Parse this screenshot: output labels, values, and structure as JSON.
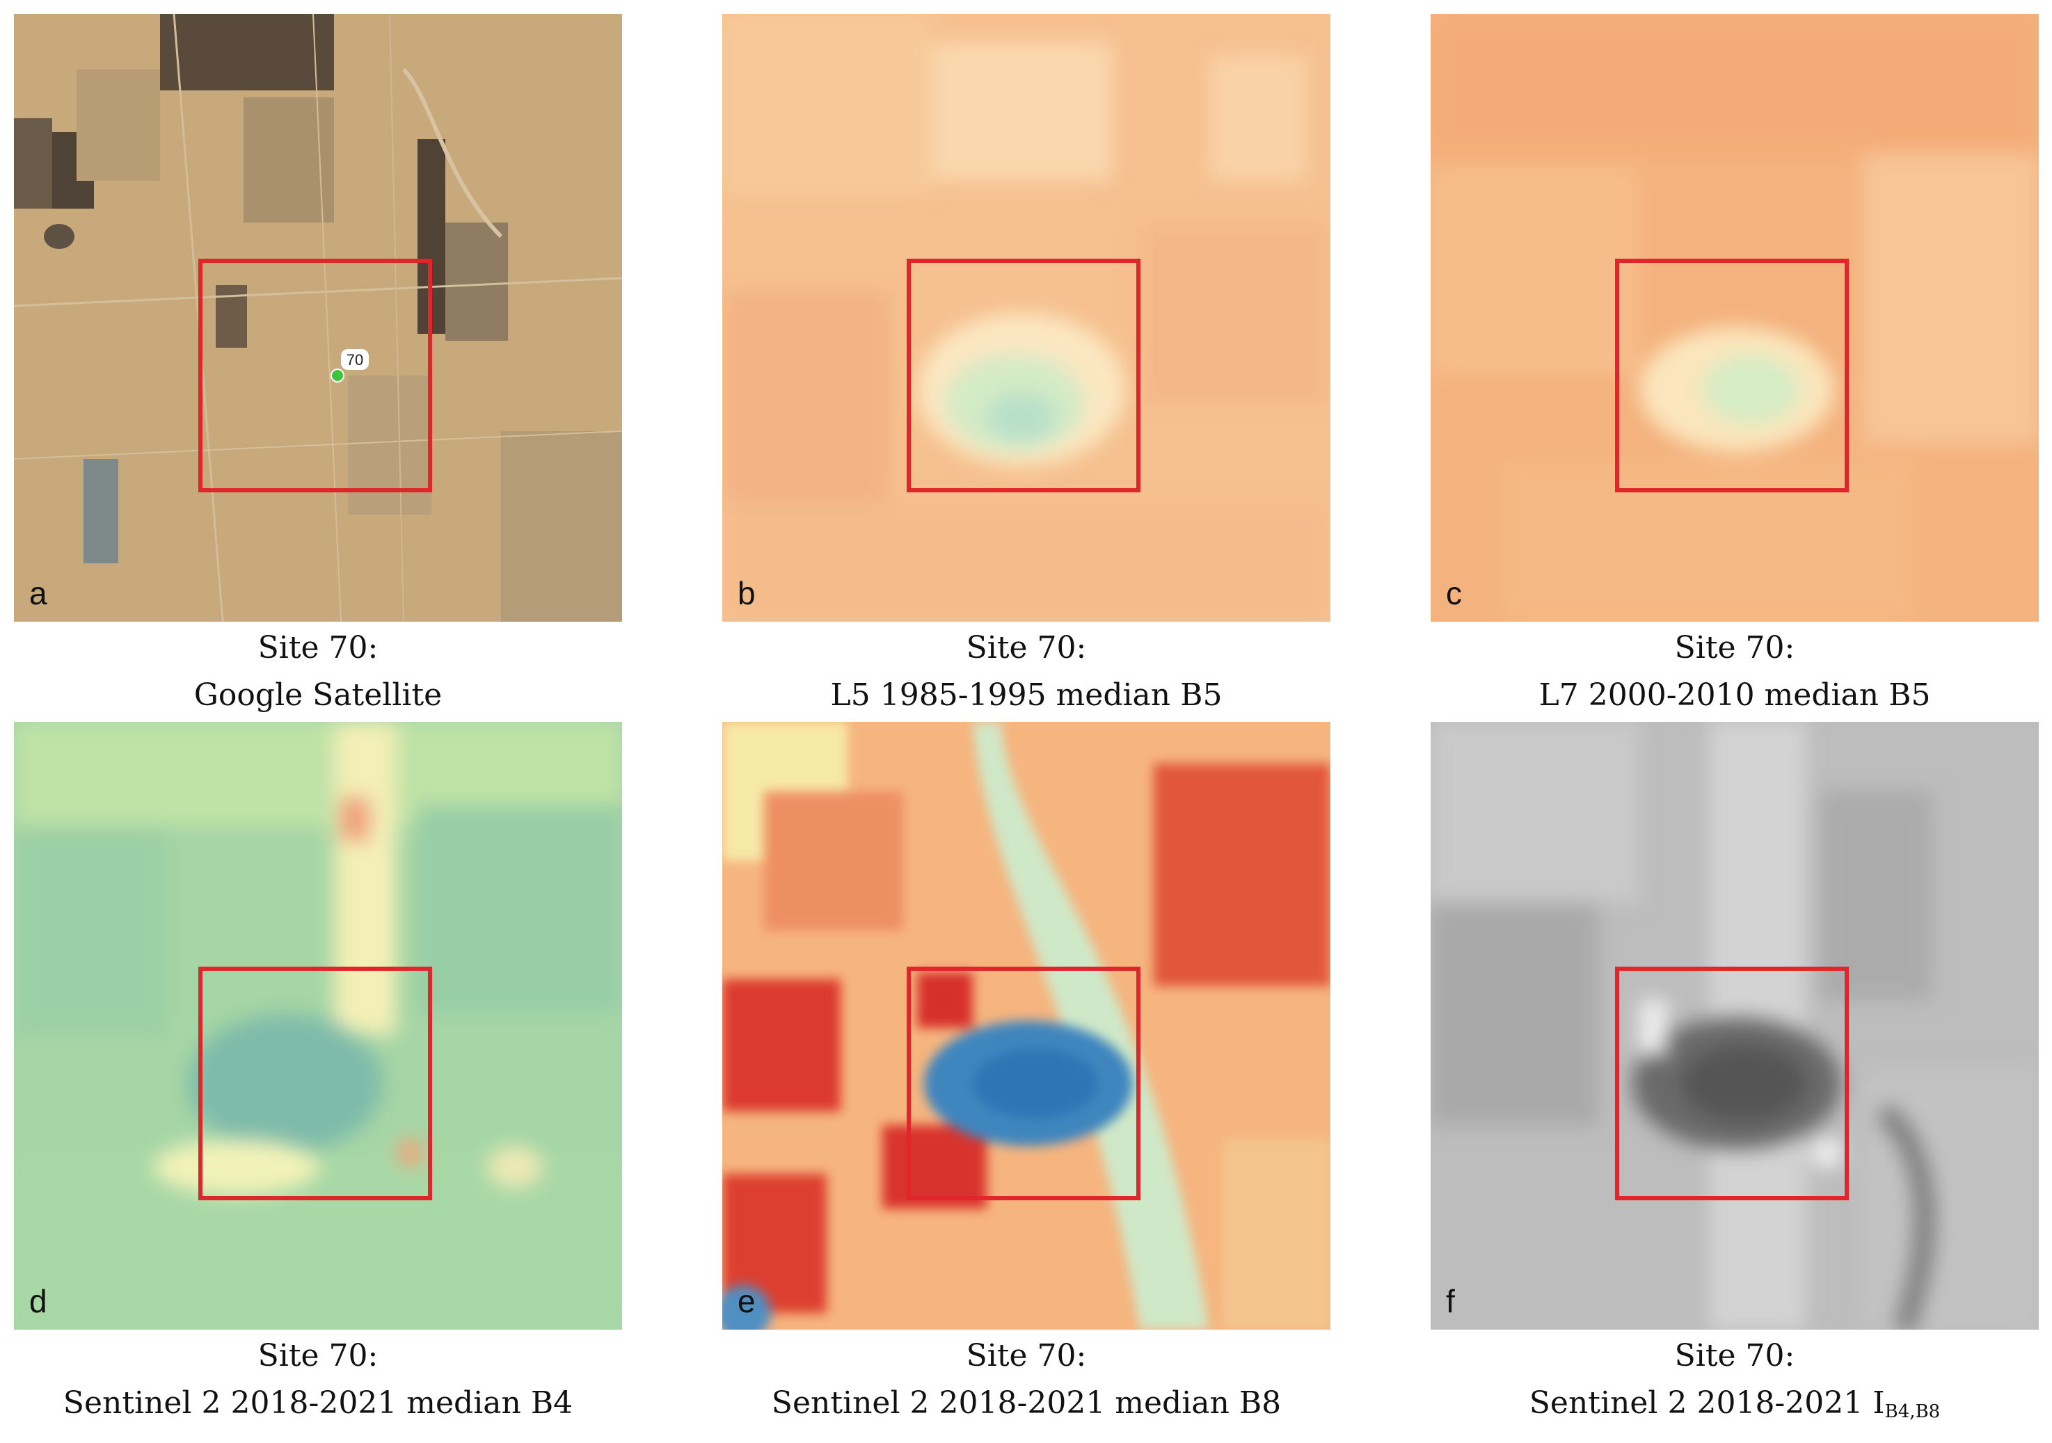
{
  "panels": [
    {
      "letter": "a",
      "line1": "Site 70:",
      "line2": "Google Satellite",
      "marker_label": "70"
    },
    {
      "letter": "b",
      "line1": "Site 70:",
      "line2": "L5 1985-1995 median B5"
    },
    {
      "letter": "c",
      "line1": "Site 70:",
      "line2": "L7 2000-2010 median B5"
    },
    {
      "letter": "d",
      "line1": "Site 70:",
      "line2": "Sentinel 2 2018-2021 median B4"
    },
    {
      "letter": "e",
      "line1": "Site 70:",
      "line2": "Sentinel 2 2018-2021 median B8"
    },
    {
      "letter": "f",
      "line1": "Site 70:",
      "line2": "Sentinel 2 2018-2021 I",
      "line2_sub": "B4,B8"
    }
  ],
  "colors": {
    "highlight_box": "#e0262a",
    "site_marker": "#3cc43c"
  }
}
